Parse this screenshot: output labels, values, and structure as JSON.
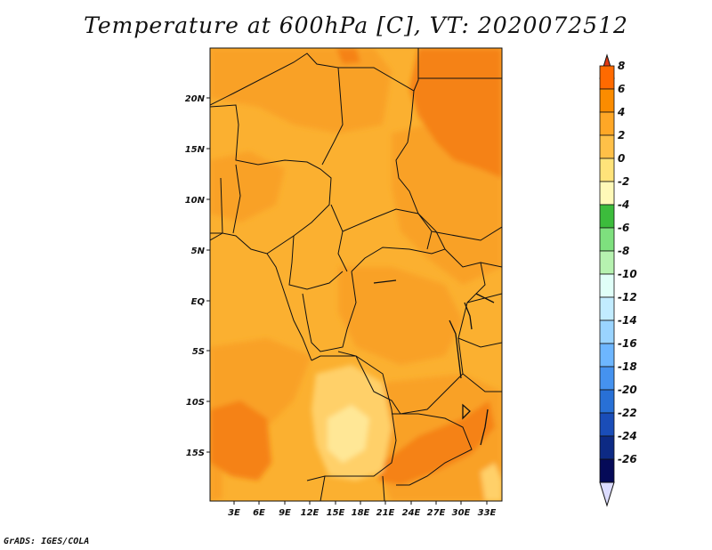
{
  "title": "Temperature at 600hPa [C], VT: 2020072512",
  "credit": "GrADS: IGES/COLA",
  "map": {
    "lat_labels": [
      "20N",
      "15N",
      "10N",
      "5N",
      "EQ",
      "5S",
      "10S",
      "15S"
    ],
    "lon_labels": [
      "3E",
      "6E",
      "9E",
      "12E",
      "15E",
      "18E",
      "21E",
      "24E",
      "27E",
      "30E",
      "33E"
    ]
  },
  "colorbar": {
    "labels": [
      "8",
      "6",
      "4",
      "2",
      "0",
      "-2",
      "-4",
      "-6",
      "-8",
      "-10",
      "-12",
      "-14",
      "-16",
      "-18",
      "-20",
      "-22",
      "-24",
      "-26"
    ],
    "colors": [
      "#e23a14",
      "#ff6a00",
      "#fb8c00",
      "#ffa726",
      "#ffc048",
      "#ffe37a",
      "#fff9b8",
      "#3cbc3c",
      "#7ee07e",
      "#b6f2b0",
      "#e0fff8",
      "#c2ecff",
      "#9ad4ff",
      "#6db6ff",
      "#4592ef",
      "#2870d6",
      "#1a4db8",
      "#0d2a84",
      "#050a58",
      "#dcdcff"
    ]
  },
  "colors": {
    "background_field": "#fbb030",
    "warm_field": "#f9a127",
    "hot_field": "#f58212",
    "cool_field": "#ffd069",
    "coolest_field": "#ffe796"
  }
}
